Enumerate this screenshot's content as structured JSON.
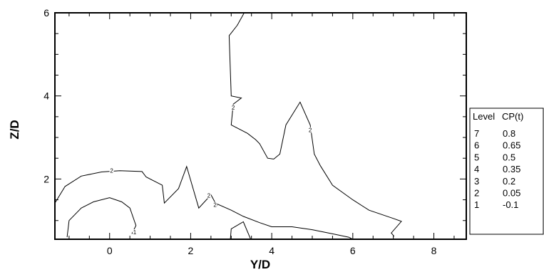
{
  "chart_data": {
    "type": "contour",
    "xlabel": "Y/D",
    "ylabel": "Z/D",
    "xlim": [
      -1.35,
      8.8
    ],
    "ylim": [
      0.55,
      6.0
    ],
    "xticks": [
      0,
      2,
      4,
      6,
      8
    ],
    "yticks": [
      2,
      4,
      6
    ],
    "legend": {
      "placement": "right",
      "headers": [
        "Level",
        "CP(t)"
      ],
      "levels": [
        {
          "level": "7",
          "value": "0.8"
        },
        {
          "level": "6",
          "value": "0.65"
        },
        {
          "level": "5",
          "value": "0.5"
        },
        {
          "level": "4",
          "value": "0.35"
        },
        {
          "level": "3",
          "value": "0.2"
        },
        {
          "level": "2",
          "value": "0.05"
        },
        {
          "level": "1",
          "value": "-0.1"
        }
      ]
    },
    "contours": [
      {
        "level": "2",
        "points": [
          [
            -1.35,
            1.42
          ],
          [
            -1.1,
            1.82
          ],
          [
            -0.7,
            2.07
          ],
          [
            -0.2,
            2.17
          ],
          [
            0.25,
            2.2
          ],
          [
            0.8,
            2.18
          ],
          [
            0.9,
            2.05
          ],
          [
            1.3,
            1.85
          ],
          [
            1.35,
            1.42
          ],
          [
            1.7,
            1.77
          ],
          [
            1.9,
            2.3
          ],
          [
            2.2,
            1.3
          ],
          [
            2.5,
            1.62
          ],
          [
            2.65,
            1.35
          ],
          [
            2.65,
            1.4
          ],
          [
            3.0,
            1.25
          ],
          [
            3.3,
            1.1
          ],
          [
            3.7,
            0.95
          ],
          [
            4.0,
            0.85
          ],
          [
            4.4,
            0.85
          ],
          [
            4.5,
            0.85
          ],
          [
            5.0,
            0.78
          ],
          [
            5.5,
            0.68
          ],
          [
            5.9,
            0.6
          ],
          [
            6.0,
            0.55
          ]
        ],
        "labels": [
          [
            0.05,
            2.2
          ],
          [
            2.45,
            1.6
          ],
          [
            2.6,
            1.38
          ]
        ]
      },
      {
        "level": "2",
        "points": [
          [
            3.32,
            6.0
          ],
          [
            3.15,
            5.7
          ],
          [
            2.95,
            5.45
          ],
          [
            3.0,
            4.0
          ],
          [
            3.25,
            3.95
          ],
          [
            3.05,
            3.8
          ],
          [
            3.0,
            3.3
          ],
          [
            3.4,
            3.1
          ],
          [
            3.6,
            2.95
          ],
          [
            3.7,
            2.85
          ],
          [
            3.9,
            2.5
          ],
          [
            4.05,
            2.48
          ],
          [
            4.2,
            2.6
          ],
          [
            4.35,
            3.3
          ],
          [
            4.7,
            3.85
          ],
          [
            4.95,
            3.3
          ],
          [
            5.05,
            2.6
          ],
          [
            5.2,
            2.32
          ],
          [
            5.5,
            1.85
          ],
          [
            6.0,
            1.5
          ],
          [
            6.4,
            1.25
          ],
          [
            7.0,
            1.05
          ],
          [
            7.2,
            0.98
          ],
          [
            6.95,
            0.7
          ],
          [
            7.02,
            0.62
          ]
        ],
        "labels": [
          [
            3.05,
            3.72
          ],
          [
            4.95,
            3.18
          ]
        ]
      },
      {
        "level": "1",
        "points": [
          [
            -1.05,
            0.6
          ],
          [
            -1.0,
            1.0
          ],
          [
            -0.7,
            1.3
          ],
          [
            -0.4,
            1.45
          ],
          [
            0.0,
            1.55
          ],
          [
            0.3,
            1.45
          ],
          [
            0.5,
            1.3
          ],
          [
            0.65,
            0.88
          ],
          [
            0.55,
            0.68
          ]
        ],
        "labels": [
          [
            0.62,
            0.72
          ]
        ]
      },
      {
        "level": "1",
        "points": [
          [
            2.98,
            0.55
          ],
          [
            3.0,
            0.8
          ],
          [
            3.3,
            0.97
          ],
          [
            3.48,
            0.55
          ]
        ],
        "labels": []
      }
    ]
  }
}
